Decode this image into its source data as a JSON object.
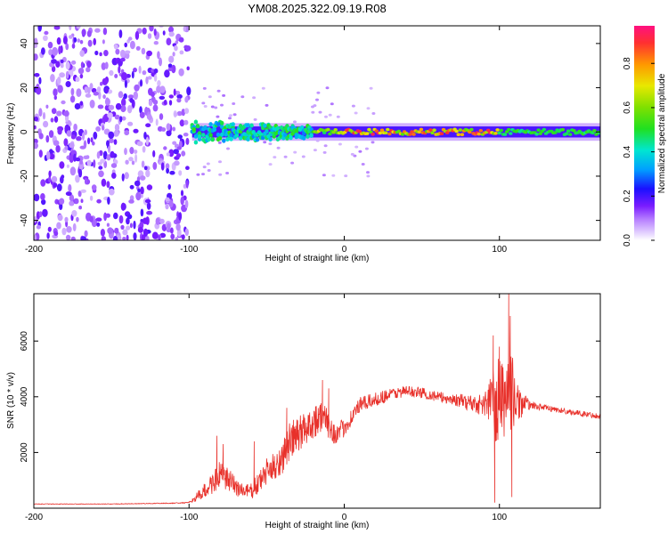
{
  "title": "YM08.2025.322.09.19.R08",
  "chart_data": [
    {
      "type": "heatmap",
      "name": "spectrogram",
      "xlabel": "Height of straight line (km)",
      "ylabel": "Frequency (Hz)",
      "xlim": [
        -200,
        165
      ],
      "ylim": [
        -49,
        48
      ],
      "xticks": [
        -200,
        -100,
        0,
        100
      ],
      "yticks": [
        -40,
        -20,
        0,
        20,
        40
      ],
      "colorbar": {
        "label": "Normalized spectral amplitude",
        "range": [
          0,
          0.97
        ],
        "ticks": [
          0.0,
          0.2,
          0.4,
          0.6,
          0.8
        ]
      },
      "regions": [
        {
          "description": "broadband noise",
          "x_range": [
            -200,
            -100
          ],
          "freq_range": [
            -49,
            48
          ],
          "amplitude_range": [
            0.05,
            0.2
          ]
        },
        {
          "description": "narrow signal band",
          "x_range": [
            -98,
            165
          ],
          "center_freq": 0,
          "halfwidth_hz": 2.5,
          "amplitude_range": [
            0.3,
            0.97
          ]
        }
      ]
    },
    {
      "type": "line",
      "name": "snr",
      "xlabel": "Height of straight line (km)",
      "ylabel": "SNR (10 * v/v)",
      "xlim": [
        -200,
        165
      ],
      "ylim": [
        0,
        7700
      ],
      "xticks": [
        -200,
        -100,
        0,
        100
      ],
      "yticks": [
        2000,
        4000,
        6000
      ],
      "series": [
        {
          "name": "SNR",
          "color": "#e8302a",
          "x": [
            -200,
            -150,
            -110,
            -100,
            -90,
            -85,
            -80,
            -75,
            -70,
            -65,
            -60,
            -55,
            -50,
            -45,
            -40,
            -35,
            -30,
            -25,
            -20,
            -15,
            -10,
            -5,
            0,
            5,
            10,
            20,
            30,
            40,
            50,
            60,
            70,
            80,
            90,
            95,
            98,
            100,
            103,
            105,
            107,
            110,
            120,
            140,
            165
          ],
          "y": [
            150,
            150,
            180,
            200,
            600,
            900,
            1200,
            1000,
            800,
            600,
            600,
            900,
            1300,
            1500,
            1800,
            2400,
            2600,
            2900,
            3100,
            3300,
            3000,
            2600,
            2900,
            3300,
            3700,
            3900,
            4100,
            4200,
            4150,
            4000,
            3900,
            3800,
            3700,
            4000,
            3500,
            4100,
            3800,
            4300,
            4500,
            3800,
            3700,
            3500,
            3300
          ],
          "noise": [
            10,
            10,
            15,
            20,
            300,
            400,
            500,
            450,
            380,
            300,
            300,
            400,
            500,
            500,
            600,
            700,
            700,
            650,
            600,
            600,
            500,
            400,
            350,
            300,
            280,
            250,
            220,
            200,
            200,
            200,
            200,
            300,
            400,
            1000,
            1800,
            1500,
            1300,
            1500,
            1800,
            800,
            120,
            100,
            100
          ],
          "spikes": [
            {
              "x": -82,
              "y": 2600
            },
            {
              "x": -78,
              "y": 2300
            },
            {
              "x": -58,
              "y": 2400
            },
            {
              "x": -37,
              "y": 3600
            },
            {
              "x": -26,
              "y": 3200
            },
            {
              "x": -14,
              "y": 4600
            },
            {
              "x": -10,
              "y": 4300
            },
            {
              "x": 96,
              "y": 6200
            },
            {
              "x": 97,
              "y": 200
            },
            {
              "x": 100,
              "y": 5800
            },
            {
              "x": 106,
              "y": 7700
            },
            {
              "x": 107,
              "y": 6900
            },
            {
              "x": 108,
              "y": 400
            }
          ]
        }
      ]
    }
  ]
}
